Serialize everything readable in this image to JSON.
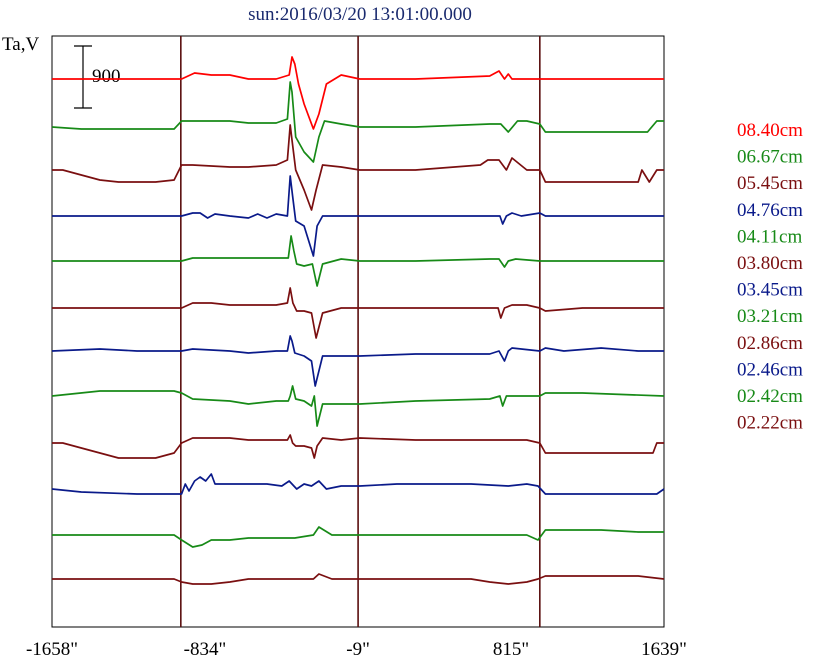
{
  "chart_data": {
    "type": "line",
    "title": "sun:2016/03/20 13:01:00.000",
    "ylabel": "Ta,V",
    "scale_bar_label": "900",
    "xlim": [
      -1658,
      1639
    ],
    "xticks": [
      {
        "value": -1658,
        "label": "-1658\""
      },
      {
        "value": -834,
        "label": "-834\""
      },
      {
        "value": -9,
        "label": "-9\""
      },
      {
        "value": 815,
        "label": "815\""
      },
      {
        "value": 1639,
        "label": "1639\""
      }
    ],
    "vertical_lines": [
      -964,
      -9,
      970
    ],
    "grid": false,
    "legend_position": "right",
    "colors": {
      "red": "#ff0000",
      "green": "#178a17",
      "maroon": "#7a0f10",
      "navy": "#0a1a8a"
    },
    "series": [
      {
        "name": "08.40cm",
        "color": "#ff0000",
        "baseline": 79,
        "gain": 1.0,
        "x": [
          -1658,
          -960,
          -890,
          -800,
          -700,
          -600,
          -450,
          -380,
          -365,
          -350,
          -330,
          -300,
          -250,
          -220,
          -180,
          -100,
          0,
          300,
          700,
          750,
          780,
          800,
          820,
          900,
          1000,
          1200,
          1400,
          1639
        ],
        "y": [
          0,
          0,
          -6,
          -4,
          -4,
          0,
          0,
          -4,
          -22,
          -15,
          5,
          25,
          50,
          35,
          5,
          -4,
          0,
          0,
          -3,
          -8,
          0,
          -5,
          0,
          0,
          0,
          0,
          0,
          0
        ]
      },
      {
        "name": "06.67cm",
        "color": "#178a17",
        "baseline": 127,
        "gain": 1.0,
        "x": [
          -1658,
          -1500,
          -1200,
          -1000,
          -960,
          -900,
          -700,
          -600,
          -450,
          -390,
          -375,
          -365,
          -345,
          -300,
          -250,
          -220,
          -190,
          -100,
          0,
          300,
          700,
          760,
          800,
          850,
          900,
          970,
          1000,
          1200,
          1400,
          1550,
          1600,
          1639
        ],
        "y": [
          0,
          2,
          2,
          2,
          -6,
          -6,
          -6,
          -4,
          -4,
          -8,
          -45,
          -35,
          10,
          25,
          35,
          10,
          -6,
          -3,
          0,
          0,
          -3,
          -3,
          5,
          -6,
          -6,
          -3,
          5,
          5,
          5,
          5,
          -6,
          -6
        ]
      },
      {
        "name": "05.45cm",
        "color": "#7a0f10",
        "baseline": 170,
        "gain": 1.0,
        "x": [
          -1658,
          -1600,
          -1500,
          -1400,
          -1300,
          -1100,
          -1000,
          -960,
          -900,
          -700,
          -600,
          -450,
          -390,
          -375,
          -365,
          -345,
          -300,
          -260,
          -235,
          -200,
          -100,
          0,
          300,
          650,
          690,
          750,
          790,
          820,
          900,
          970,
          1000,
          1200,
          1300,
          1500,
          1520,
          1560,
          1600,
          1639
        ],
        "y": [
          0,
          0,
          5,
          10,
          12,
          12,
          10,
          -5,
          -5,
          -3,
          -3,
          -5,
          -10,
          -45,
          -30,
          0,
          20,
          40,
          20,
          -5,
          -3,
          0,
          0,
          -5,
          -10,
          -10,
          0,
          -12,
          0,
          0,
          12,
          12,
          12,
          12,
          0,
          12,
          0,
          0
        ]
      },
      {
        "name": "04.76cm",
        "color": "#0a1a8a",
        "baseline": 216,
        "gain": 1.0,
        "x": [
          -1658,
          -1200,
          -960,
          -900,
          -860,
          -820,
          -780,
          -700,
          -600,
          -550,
          -500,
          -450,
          -390,
          -375,
          -362,
          -345,
          -300,
          -250,
          -230,
          -200,
          -100,
          0,
          300,
          700,
          755,
          770,
          790,
          820,
          870,
          970,
          1000,
          1200,
          1639
        ],
        "y": [
          0,
          0,
          0,
          -3,
          -3,
          2,
          -2,
          0,
          2,
          -2,
          2,
          -2,
          0,
          -40,
          -20,
          5,
          10,
          40,
          10,
          0,
          0,
          0,
          0,
          0,
          0,
          8,
          0,
          -3,
          0,
          -3,
          0,
          0,
          0
        ]
      },
      {
        "name": "04.11cm",
        "color": "#178a17",
        "baseline": 261,
        "gain": 1.0,
        "x": [
          -1658,
          -960,
          -900,
          -700,
          -450,
          -385,
          -370,
          -355,
          -340,
          -300,
          -255,
          -230,
          -200,
          -100,
          0,
          300,
          700,
          750,
          780,
          800,
          840,
          970,
          1000,
          1200,
          1639
        ],
        "y": [
          0,
          0,
          -3,
          -3,
          -3,
          -3,
          -25,
          -10,
          3,
          5,
          3,
          25,
          3,
          -2,
          0,
          0,
          -2,
          -2,
          6,
          0,
          -2,
          0,
          0,
          0,
          0
        ]
      },
      {
        "name": "03.80cm",
        "color": "#7a0f10",
        "baseline": 308,
        "gain": 1.0,
        "x": [
          -1658,
          -1200,
          -960,
          -900,
          -800,
          -700,
          -450,
          -390,
          -375,
          -360,
          -340,
          -300,
          -260,
          -235,
          -200,
          -100,
          0,
          300,
          700,
          745,
          760,
          780,
          820,
          900,
          970,
          1000,
          1200,
          1639
        ],
        "y": [
          0,
          0,
          0,
          -5,
          -5,
          -3,
          -3,
          -5,
          -20,
          -5,
          3,
          3,
          5,
          30,
          5,
          0,
          0,
          0,
          0,
          0,
          10,
          0,
          -3,
          -3,
          0,
          3,
          0,
          0
        ]
      },
      {
        "name": "03.45cm",
        "color": "#0a1a8a",
        "baseline": 351,
        "gain": 1.0,
        "x": [
          -1658,
          -1400,
          -1200,
          -1000,
          -960,
          -900,
          -700,
          -600,
          -450,
          -390,
          -375,
          -365,
          -350,
          -300,
          -260,
          -240,
          -200,
          -100,
          0,
          300,
          700,
          750,
          780,
          800,
          820,
          970,
          1000,
          1100,
          1300,
          1500,
          1639
        ],
        "y": [
          0,
          -2,
          0,
          0,
          0,
          -2,
          0,
          2,
          0,
          0,
          -15,
          -10,
          2,
          5,
          10,
          35,
          5,
          5,
          5,
          3,
          3,
          0,
          10,
          0,
          -3,
          0,
          -3,
          0,
          -3,
          0,
          0
        ]
      },
      {
        "name": "03.21cm",
        "color": "#178a17",
        "baseline": 396,
        "gain": 1.0,
        "x": [
          -1658,
          -1400,
          -1000,
          -960,
          -900,
          -700,
          -600,
          -450,
          -385,
          -375,
          -362,
          -345,
          -300,
          -260,
          -245,
          -230,
          -200,
          -100,
          0,
          300,
          700,
          755,
          770,
          790,
          820,
          900,
          970,
          1000,
          1200,
          1639
        ],
        "y": [
          0,
          -5,
          -5,
          -3,
          3,
          5,
          8,
          5,
          5,
          0,
          -10,
          3,
          5,
          10,
          0,
          30,
          8,
          8,
          8,
          5,
          3,
          0,
          10,
          0,
          0,
          0,
          0,
          -3,
          -3,
          0
        ]
      },
      {
        "name": "02.86cm",
        "color": "#7a0f10",
        "baseline": 443,
        "gain": 1.0,
        "x": [
          -1658,
          -1600,
          -1500,
          -1400,
          -1300,
          -1100,
          -1000,
          -960,
          -900,
          -700,
          -600,
          -450,
          -390,
          -375,
          -362,
          -345,
          -300,
          -260,
          -245,
          -230,
          -200,
          -100,
          0,
          300,
          700,
          800,
          850,
          900,
          970,
          1000,
          1200,
          1300,
          1500,
          1580,
          1600,
          1639
        ],
        "y": [
          0,
          0,
          5,
          10,
          15,
          15,
          10,
          0,
          -5,
          -5,
          -3,
          -3,
          -3,
          -8,
          0,
          3,
          3,
          5,
          15,
          3,
          -5,
          -3,
          -5,
          -3,
          -3,
          -3,
          -3,
          -3,
          0,
          10,
          10,
          10,
          10,
          10,
          0,
          0
        ]
      },
      {
        "name": "02.46cm",
        "color": "#0a1a8a",
        "baseline": 489,
        "gain": 1.0,
        "x": [
          -1658,
          -1500,
          -1200,
          -1000,
          -960,
          -940,
          -920,
          -890,
          -860,
          -830,
          -800,
          -780,
          -700,
          -600,
          -500,
          -420,
          -380,
          -340,
          -300,
          -260,
          -220,
          -180,
          -100,
          0,
          200,
          400,
          600,
          800,
          900,
          960,
          1000,
          1200,
          1400,
          1600,
          1639
        ],
        "y": [
          0,
          3,
          5,
          5,
          5,
          -5,
          2,
          -8,
          -12,
          -8,
          -15,
          -5,
          -5,
          -5,
          -5,
          -3,
          -8,
          0,
          -5,
          -3,
          -8,
          0,
          -3,
          -3,
          -5,
          -5,
          -5,
          -3,
          -5,
          -3,
          5,
          5,
          5,
          5,
          0
        ]
      },
      {
        "name": "02.42cm",
        "color": "#178a17",
        "baseline": 535,
        "gain": 1.0,
        "x": [
          -1658,
          -1500,
          -1200,
          -1000,
          -960,
          -900,
          -850,
          -800,
          -700,
          -600,
          -450,
          -350,
          -250,
          -220,
          -150,
          0,
          300,
          600,
          800,
          900,
          960,
          1000,
          1100,
          1300,
          1500,
          1639
        ],
        "y": [
          0,
          0,
          0,
          0,
          5,
          12,
          10,
          5,
          5,
          3,
          3,
          3,
          0,
          -8,
          0,
          0,
          0,
          0,
          0,
          0,
          5,
          -5,
          -5,
          -5,
          -3,
          -3
        ]
      },
      {
        "name": "02.22cm",
        "color": "#7a0f10",
        "baseline": 579,
        "gain": 1.0,
        "x": [
          -1658,
          -1500,
          -1200,
          -1000,
          -960,
          -900,
          -800,
          -700,
          -600,
          -450,
          -300,
          -250,
          -220,
          -150,
          0,
          300,
          600,
          700,
          800,
          900,
          960,
          1000,
          1100,
          1300,
          1500,
          1639
        ],
        "y": [
          0,
          0,
          0,
          0,
          3,
          5,
          5,
          3,
          0,
          0,
          0,
          0,
          -5,
          0,
          0,
          0,
          0,
          3,
          5,
          3,
          0,
          -3,
          -3,
          -3,
          -3,
          0
        ]
      }
    ]
  }
}
